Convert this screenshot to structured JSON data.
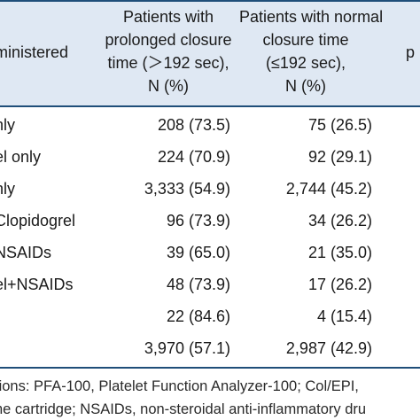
{
  "table": {
    "header": {
      "col0": "ministered",
      "col1": [
        "Patients with",
        "prolonged closure",
        "time (＞192 sec),",
        "N (%)"
      ],
      "col2": [
        "Patients with normal",
        "closure time",
        "(≤192 sec),",
        "N (%)"
      ],
      "col3": "p"
    },
    "rows": [
      {
        "label": "nly",
        "prolonged": "208 (73.5)",
        "normal": "75 (26.5)"
      },
      {
        "label": "el only",
        "prolonged": "224 (70.9)",
        "normal": "92 (29.1)"
      },
      {
        "label": "nly",
        "prolonged": "3,333 (54.9)",
        "normal": "2,744 (45.2)"
      },
      {
        "label": "Clopidogrel",
        "prolonged": "96 (73.9)",
        "normal": "34 (26.2)"
      },
      {
        "label": "NSAIDs",
        "prolonged": "39 (65.0)",
        "normal": "21 (35.0)"
      },
      {
        "label": "el+NSAIDs",
        "prolonged": "48 (73.9)",
        "normal": "17 (26.2)"
      },
      {
        "label": "",
        "prolonged": "22 (84.6)",
        "normal": "4 (15.4)"
      },
      {
        "label": "",
        "prolonged": "3,970 (57.1)",
        "normal": "2,987 (42.9)"
      }
    ]
  },
  "footnote": {
    "line1": "tions: PFA-100, Platelet Function Analyzer-100; Col/EPI,",
    "line2": "ne cartridge; NSAIDs, non-steroidal anti-inflammatory dru"
  }
}
